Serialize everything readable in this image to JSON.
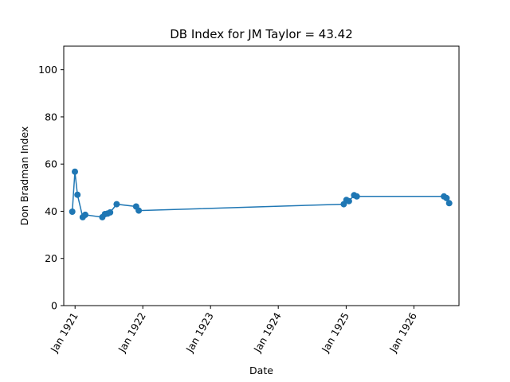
{
  "chart_data": {
    "type": "line",
    "title": "DB Index for JM Taylor = 43.42",
    "xlabel": "Date",
    "ylabel": "Don Bradman Index",
    "ylim": [
      0,
      110
    ],
    "xlim": [
      "1920-11-01",
      "1926-09-01"
    ],
    "yticks": [
      0,
      20,
      40,
      60,
      80,
      100
    ],
    "xticks": [
      {
        "date": "1921-01-01",
        "label": "Jan 1921"
      },
      {
        "date": "1922-01-01",
        "label": "Jan 1922"
      },
      {
        "date": "1923-01-01",
        "label": "Jan 1923"
      },
      {
        "date": "1924-01-01",
        "label": "Jan 1924"
      },
      {
        "date": "1925-01-01",
        "label": "Jan 1925"
      },
      {
        "date": "1926-01-01",
        "label": "Jan 1926"
      }
    ],
    "grid": false,
    "color": "#1f77b4",
    "series": [
      {
        "x": [
          "1920-12-17",
          "1920-12-31",
          "1921-01-14",
          "1921-02-11",
          "1921-02-25",
          "1921-05-28",
          "1921-06-11",
          "1921-06-25",
          "1921-07-09",
          "1921-08-13",
          "1921-11-26",
          "1921-12-10",
          "1924-12-19",
          "1925-01-02",
          "1925-01-16",
          "1925-02-13",
          "1925-02-27",
          "1926-06-12",
          "1926-06-26",
          "1926-07-10"
        ],
        "y": [
          39.8,
          56.8,
          47.0,
          37.5,
          38.5,
          37.5,
          38.8,
          39.0,
          39.5,
          43.0,
          42.0,
          40.3,
          43.0,
          44.8,
          44.3,
          46.8,
          46.3,
          46.3,
          45.6,
          43.42
        ]
      }
    ]
  }
}
